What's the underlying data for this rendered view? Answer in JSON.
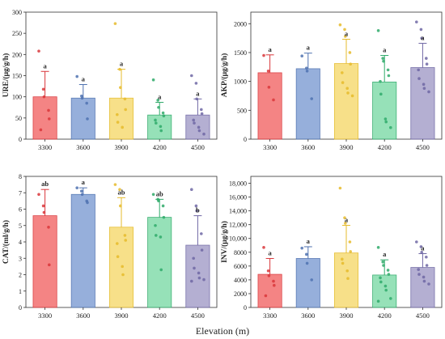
{
  "figure": {
    "xlabel": "Elevation (m)"
  },
  "chart_data": [
    {
      "type": "bar",
      "panel": "top-left",
      "categories": [
        "3300",
        "3600",
        "3900",
        "4200",
        "4500"
      ],
      "values": [
        100,
        97,
        97,
        57,
        57
      ],
      "errors": [
        60,
        32,
        68,
        30,
        38
      ],
      "letters": [
        "a",
        "a",
        "a",
        "a",
        "a"
      ],
      "points": [
        [
          208,
          118,
          100,
          68,
          48,
          22
        ],
        [
          148,
          102,
          97,
          85,
          48
        ],
        [
          273,
          165,
          122,
          95,
          70,
          58,
          40,
          28
        ],
        [
          140,
          92,
          75,
          62,
          55,
          45,
          38,
          30,
          20
        ],
        [
          150,
          132,
          95,
          70,
          60,
          45,
          38,
          28,
          20,
          12
        ]
      ],
      "ylabel": "URE/(μg/g/h)",
      "ylim": [
        0,
        300
      ],
      "yticks": [
        0,
        50,
        100,
        150,
        200,
        250,
        300
      ],
      "ytick_labels": [
        "0",
        "50",
        "100",
        "150",
        "200",
        "250",
        "300"
      ]
    },
    {
      "type": "bar",
      "panel": "top-right",
      "categories": [
        "3300",
        "3600",
        "3900",
        "4200",
        "4500"
      ],
      "values": [
        1150,
        1220,
        1310,
        990,
        1240
      ],
      "errors": [
        310,
        270,
        420,
        460,
        420
      ],
      "letters": [
        "a",
        "a",
        "a",
        "a",
        "a"
      ],
      "points": [
        [
          1450,
          1180,
          900,
          680
        ],
        [
          1440,
          1230,
          1180,
          700
        ],
        [
          1980,
          1900,
          1780,
          1500,
          1300,
          1150,
          980,
          880,
          800,
          750
        ],
        [
          1880,
          1400,
          1350,
          1200,
          1100,
          1000,
          780,
          350,
          300,
          200
        ],
        [
          2030,
          1900,
          1750,
          1400,
          1300,
          1200,
          1050,
          950,
          880,
          820
        ]
      ],
      "ylabel": "AKP/(μg/g/h)",
      "ylim": [
        0,
        2200
      ],
      "yticks": [
        0,
        500,
        1000,
        1500,
        2000
      ],
      "ytick_labels": [
        "0",
        "500",
        "1000",
        "1500",
        "2000"
      ]
    },
    {
      "type": "bar",
      "panel": "bottom-left",
      "categories": [
        "3300",
        "3600",
        "3900",
        "4200",
        "4500"
      ],
      "values": [
        5.6,
        6.9,
        4.9,
        5.5,
        3.8
      ],
      "errors": [
        1.6,
        0.4,
        1.8,
        1.1,
        1.8
      ],
      "letters": [
        "ab",
        "a",
        "ab",
        "ab",
        "b"
      ],
      "points": [
        [
          6.9,
          6.2,
          5.8,
          4.9,
          2.6
        ],
        [
          7.3,
          7.1,
          6.9,
          6.5,
          6.4
        ],
        [
          7.5,
          7.2,
          6.2,
          4.4,
          4.1,
          3.9,
          3.1,
          2.5,
          2.0
        ],
        [
          6.9,
          6.6,
          6.5,
          6.2,
          5.5,
          5.0,
          4.4,
          4.3,
          2.3
        ],
        [
          7.2,
          6.2,
          5.9,
          4.5,
          3.5,
          3.0,
          2.4,
          2.1,
          1.8,
          1.7,
          1.6
        ]
      ],
      "ylabel": "CAT/(ml/g/h)",
      "ylim": [
        0,
        8
      ],
      "yticks": [
        0,
        1,
        2,
        3,
        4,
        5,
        6,
        7,
        8
      ],
      "ytick_labels": [
        "0",
        "1",
        "2",
        "3",
        "4",
        "5",
        "6",
        "7",
        "8"
      ]
    },
    {
      "type": "bar",
      "panel": "bottom-right",
      "categories": [
        "3300",
        "3600",
        "3900",
        "4200",
        "4500"
      ],
      "values": [
        4800,
        7100,
        7900,
        4700,
        5800
      ],
      "errors": [
        2300,
        1700,
        4000,
        2200,
        2000
      ],
      "letters": [
        "a",
        "a",
        "a",
        "a",
        "a"
      ],
      "points": [
        [
          8700,
          5300,
          4600,
          3800,
          3200,
          1700
        ],
        [
          8600,
          7700,
          6400,
          4000
        ],
        [
          17300,
          13000,
          12200,
          9500,
          8100,
          7000,
          6400,
          5300,
          4200
        ],
        [
          8700,
          6600,
          6100,
          5400,
          4800,
          4300,
          3700,
          3100,
          2500,
          1300,
          900
        ],
        [
          9500,
          8800,
          8000,
          7300,
          6100,
          5500,
          4800,
          4400,
          3800,
          3400
        ]
      ],
      "ylabel": "INV/(μg/g/h)",
      "ylim": [
        0,
        19000
      ],
      "yticks": [
        0,
        2000,
        4000,
        6000,
        8000,
        10000,
        12000,
        14000,
        16000,
        18000
      ],
      "ytick_labels": [
        "0",
        "2000",
        "4000",
        "6000",
        "8000",
        "10,000",
        "12,000",
        "14,000",
        "16,000",
        "18,000"
      ]
    }
  ],
  "colors": {
    "fills": [
      "#f47a7a",
      "#8ea9d8",
      "#f7de7f",
      "#8edfb2",
      "#aea9cf"
    ],
    "strokes": [
      "#d9363a",
      "#4f72b0",
      "#e6bb2c",
      "#2faa6a",
      "#6f67a4"
    ]
  }
}
